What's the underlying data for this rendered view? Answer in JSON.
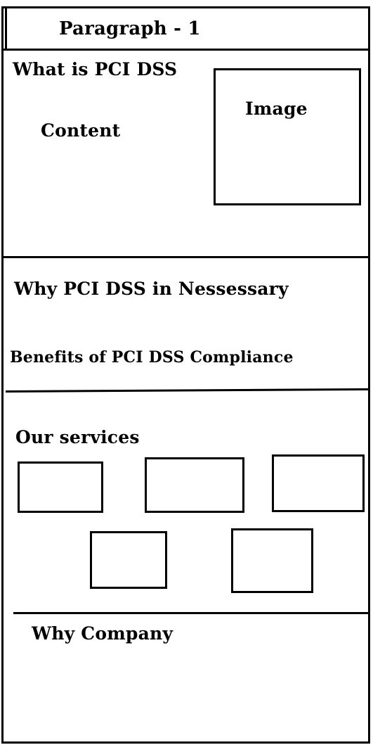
{
  "header": {
    "title": "Paragraph - 1"
  },
  "section1": {
    "heading": "What is PCI DSS",
    "content_label": "Content",
    "image_label": "Image"
  },
  "section2": {
    "heading": "Why PCI DSS in Nessessary",
    "subheading": "Benefits of PCI DSS Compliance"
  },
  "section3": {
    "heading": "Our services",
    "service_count": 5
  },
  "section4": {
    "heading": "Why Company"
  }
}
